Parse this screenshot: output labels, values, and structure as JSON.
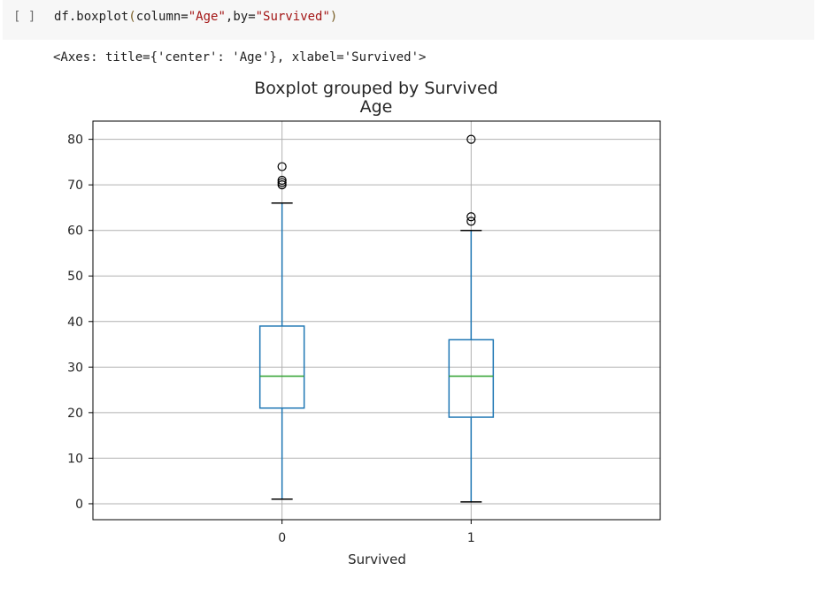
{
  "cell": {
    "run_indicator": "[ ]",
    "code_prefix": "df.boxplot",
    "code_open": "(",
    "code_arg1_name": "column=",
    "code_arg1_value": "\"Age\"",
    "code_sep": ",by=",
    "code_arg2_value": "\"Survived\"",
    "code_close": ")"
  },
  "output": {
    "repr": "<Axes: title={'center': 'Age'}, xlabel='Survived'>"
  },
  "chart_data": {
    "type": "box",
    "suptitle": "Boxplot grouped by Survived",
    "title": "Age",
    "xlabel": "Survived",
    "ylabel": "",
    "categories": [
      "0",
      "1"
    ],
    "ylim": [
      -3.5,
      84
    ],
    "yticks": [
      0,
      10,
      20,
      30,
      40,
      50,
      60,
      70,
      80
    ],
    "grid": true,
    "colors": {
      "box": "#1f77b4",
      "median": "#2ca02c",
      "whisker_cap": "#000000",
      "grid": "#b0b0b0",
      "frame": "#000000"
    },
    "boxes": [
      {
        "category": "0",
        "whisker_low": 1,
        "q1": 21,
        "median": 28,
        "q3": 39,
        "whisker_high": 66,
        "fliers": [
          70,
          70.5,
          71,
          74
        ]
      },
      {
        "category": "1",
        "whisker_low": 0.4,
        "q1": 19,
        "median": 28,
        "q3": 36,
        "whisker_high": 60,
        "fliers": [
          62,
          63,
          80
        ]
      }
    ]
  }
}
